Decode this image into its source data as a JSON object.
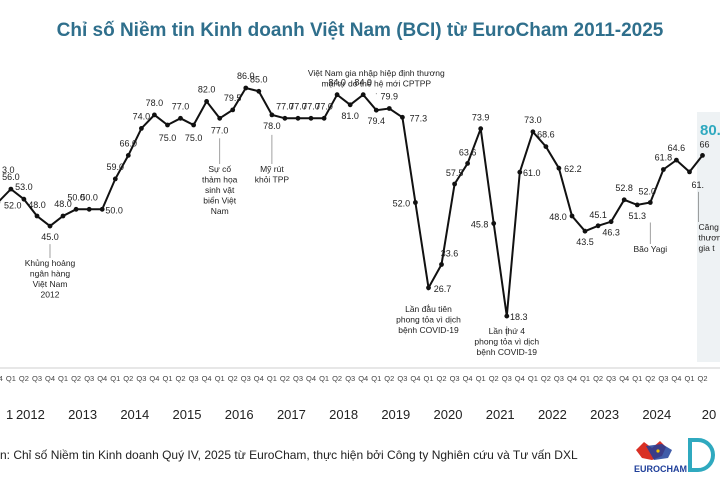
{
  "title": "Chỉ số Niềm tin Kinh doanh Việt Nam (BCI) từ EuroCham 2011-2025",
  "source": "n: Chỉ số Niềm tin Kinh doanh Quý IV, 2025 từ EuroCham, thực hiện bởi Công ty Nghiên cứu và Tư vấn DXL",
  "logo_text": "EUROCHAM",
  "highlight_value": "80.",
  "colors": {
    "title": "#2f6f8c",
    "line": "#111111",
    "highlight_panel": "#eef2f4",
    "highlight_text": "#2fa9bf"
  },
  "chart_data": {
    "type": "line",
    "x_start": "2011 Q4",
    "quarter_labels": [
      "Q1",
      "Q2",
      "Q3",
      "Q4"
    ],
    "year_labels": [
      "1",
      "2012",
      "2013",
      "2014",
      "2015",
      "2016",
      "2017",
      "2018",
      "2019",
      "2020",
      "2021",
      "2022",
      "2023",
      "2024",
      "20"
    ],
    "values": [
      52.0,
      56.0,
      53.0,
      48.0,
      45.0,
      48.0,
      50.0,
      50.0,
      50.0,
      59.0,
      66.0,
      74.0,
      78.0,
      75.0,
      77.0,
      75.0,
      82.0,
      77.0,
      79.5,
      86.0,
      85.0,
      78.0,
      77.0,
      77.0,
      77.0,
      77.0,
      84.0,
      81.0,
      84.0,
      79.4,
      79.9,
      77.3,
      52.0,
      26.7,
      33.6,
      57.5,
      63.6,
      73.9,
      45.8,
      18.3,
      61.0,
      73.0,
      68.6,
      62.2,
      48.0,
      43.5,
      45.1,
      46.3,
      52.8,
      51.3,
      52.0,
      61.8,
      64.6,
      61.1,
      66.0
    ],
    "labels": [
      "52.0",
      "56.0",
      "53.0",
      "48.0",
      "45.0",
      "48.0",
      "50.0",
      "50.0",
      "50.0",
      "59.0",
      "66.0",
      "74.0",
      "78.0",
      "75.0",
      "77.0",
      "75.0",
      "82.0",
      "77.0",
      "79.5",
      "86.0",
      "85.0",
      "78.0",
      "77.0",
      "77.0",
      "77.0",
      "77.0",
      "84.0",
      "81.0",
      "84.0",
      "79.4",
      "79.9",
      "77.3",
      "52.0",
      "26.7",
      "33.6",
      "57.5",
      "63.6",
      "73.9",
      "45.8",
      "18.3",
      "61.0",
      "73.0",
      "68.6",
      "62.2",
      "48.0",
      "43.5",
      "45.1",
      "46.3",
      "52.8",
      "51.3",
      "52.0",
      "61.8",
      "64.6",
      "61.",
      "66"
    ],
    "extra_labels": [
      "3.0"
    ],
    "annotations": [
      {
        "index": 4,
        "lines": [
          "Khủng hoảng",
          "ngân hàng",
          "Việt Nam",
          "2012"
        ]
      },
      {
        "index": 17,
        "lines": [
          "Sự cố",
          "thảm họa",
          "sinh vật",
          "biển Việt",
          "Nam"
        ]
      },
      {
        "index": 21,
        "lines": [
          "Mỹ rút",
          "khỏi TPP"
        ]
      },
      {
        "index": 29,
        "lines": [
          "Việt Nam gia nhập hiệp định thương",
          "mại tự do thế hệ mới CPTPP"
        ]
      },
      {
        "index": 33,
        "lines": [
          "Lần đầu tiên",
          "phong tỏa vì dịch",
          "bệnh COVID-19"
        ]
      },
      {
        "index": 39,
        "lines": [
          "Lần thứ 4",
          "phong tỏa vì dịch",
          "bệnh COVID-19"
        ]
      },
      {
        "index": 50,
        "lines": [
          "Bão Yagi"
        ]
      },
      {
        "index": 53,
        "lines": [
          "Căng",
          "thươn",
          "gia t"
        ]
      }
    ]
  }
}
